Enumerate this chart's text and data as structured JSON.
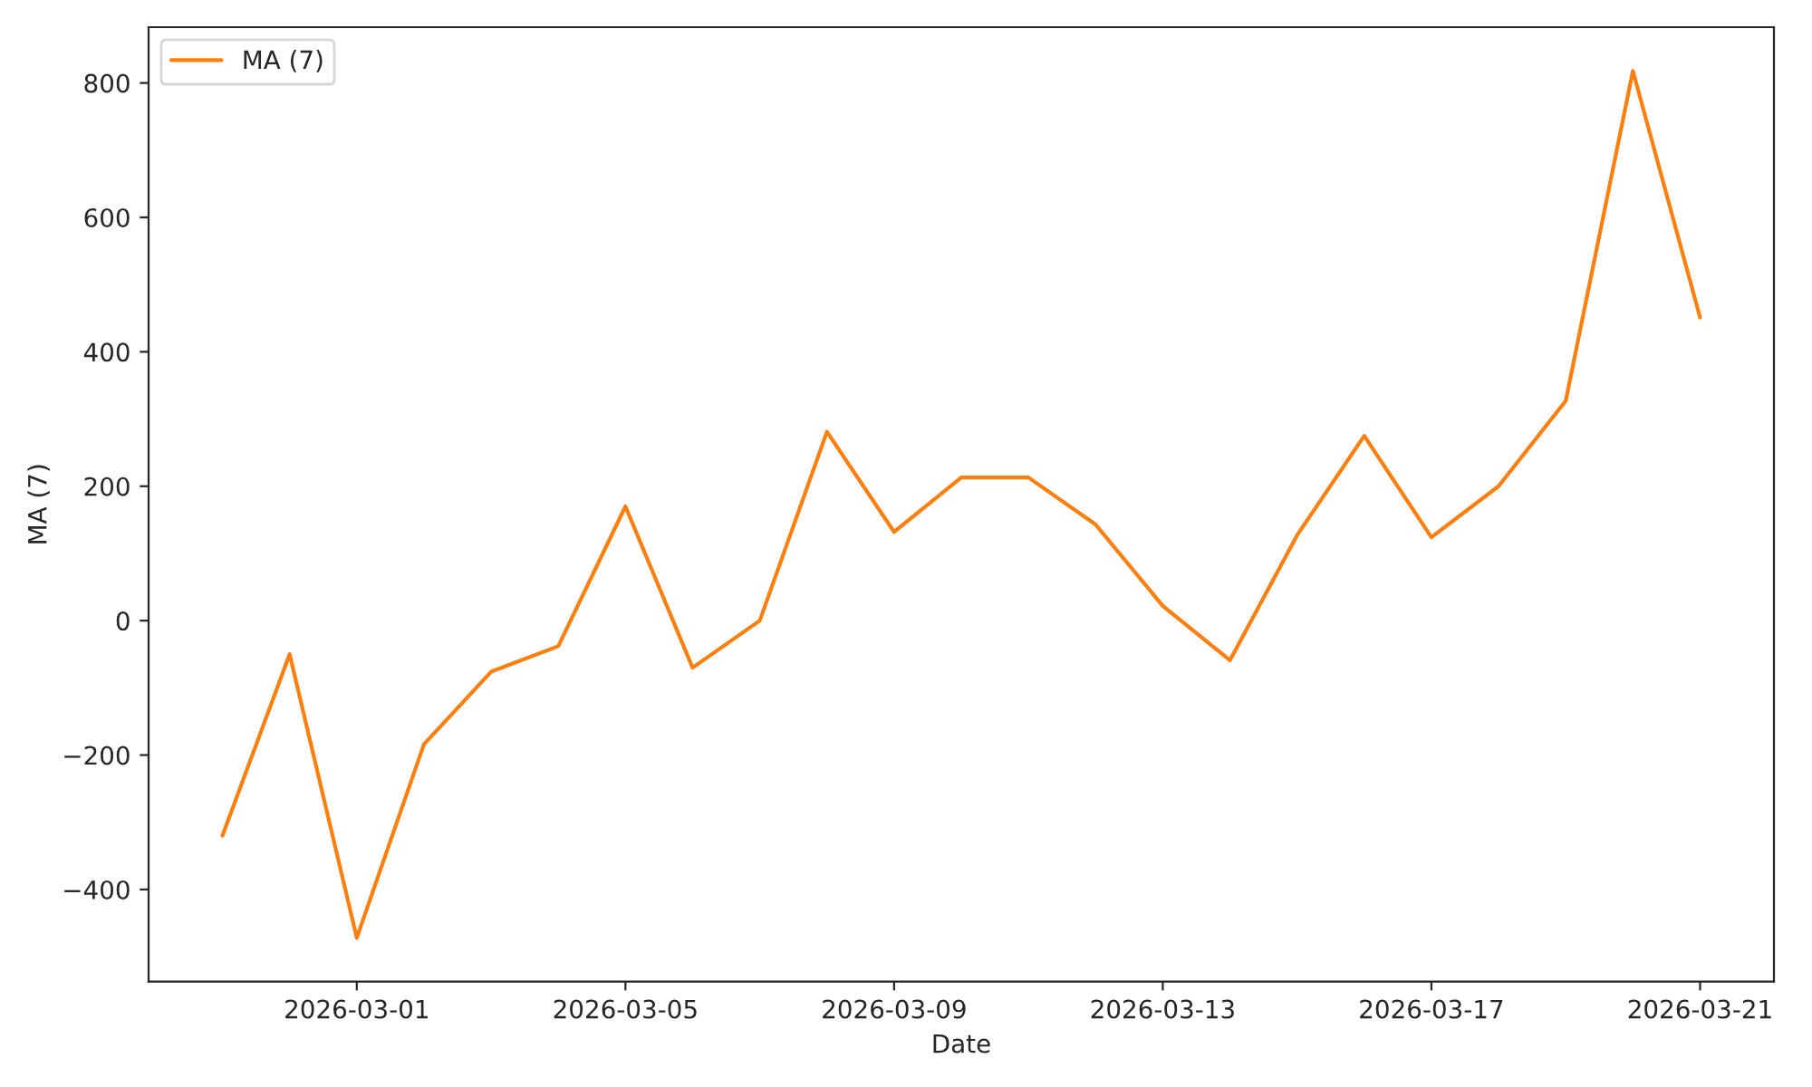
{
  "chart_data": {
    "type": "line",
    "xlabel": "Date",
    "ylabel": "MA (7)",
    "x": [
      "2026-02-27",
      "2026-02-28",
      "2026-03-01",
      "2026-03-02",
      "2026-03-03",
      "2026-03-04",
      "2026-03-05",
      "2026-03-06",
      "2026-03-07",
      "2026-03-08",
      "2026-03-09",
      "2026-03-10",
      "2026-03-11",
      "2026-03-12",
      "2026-03-13",
      "2026-03-14",
      "2026-03-15",
      "2026-03-16",
      "2026-03-17",
      "2026-03-18",
      "2026-03-19",
      "2026-03-20",
      "2026-03-21"
    ],
    "series": [
      {
        "name": "MA (7)",
        "color": "#ff7f0e",
        "values": [
          -320,
          -50,
          -472,
          -184,
          -76,
          -38,
          170,
          -70,
          0,
          281,
          132,
          213,
          213,
          143,
          22,
          -59,
          127,
          275,
          124,
          200,
          327,
          818,
          451
        ]
      }
    ],
    "xlim": [
      "2026-02-25T21:36",
      "2026-03-22T02:24"
    ],
    "xticks": [
      "2026-03-01",
      "2026-03-05",
      "2026-03-09",
      "2026-03-13",
      "2026-03-17",
      "2026-03-21"
    ],
    "ylim": [
      -537,
      883
    ],
    "yticks": [
      -400,
      -200,
      0,
      200,
      400,
      600,
      800
    ],
    "legend": "top left",
    "grid": false
  }
}
